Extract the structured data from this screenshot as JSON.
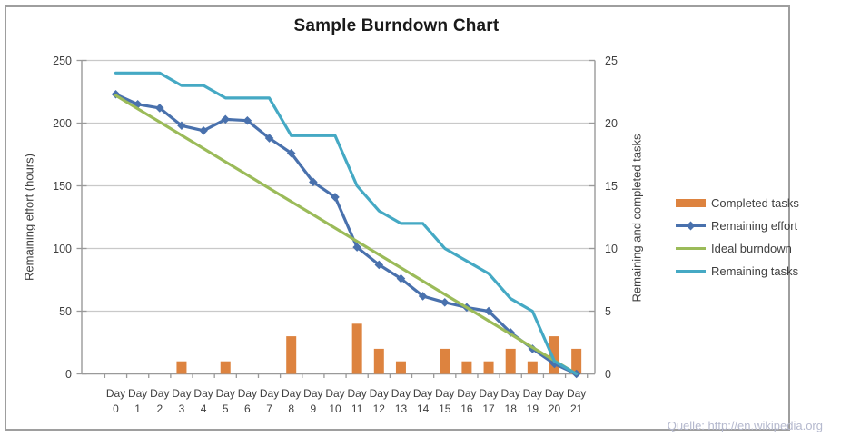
{
  "title": "Sample Burndown Chart",
  "source_note": "Quelle: http://en.wikipedia.org",
  "colors": {
    "gridline": "#c9c9c9",
    "axis_line": "#9a9a9a",
    "tick_text": "#3f3f3f",
    "title_text": "#1a1a1a",
    "source_text": "#b5b9ce",
    "frame_border": "#9e9e9e",
    "bar_orange": "#dd833f",
    "effort_blue": "#4971ad",
    "ideal_green": "#9bbb59",
    "tasks_teal": "#45a9c4"
  },
  "chart_data": {
    "type": "combo-bar-line",
    "title": "Sample Burndown Chart",
    "categories": [
      "Day 0",
      "Day 1",
      "Day 2",
      "Day 3",
      "Day 4",
      "Day 5",
      "Day 6",
      "Day 7",
      "Day 8",
      "Day 9",
      "Day 10",
      "Day 11",
      "Day 12",
      "Day 13",
      "Day 14",
      "Day 15",
      "Day 16",
      "Day 17",
      "Day 18",
      "Day 19",
      "Day 20",
      "Day 21"
    ],
    "left_axis": {
      "label": "Remaining effort (hours)",
      "ticks": [
        0,
        50,
        100,
        150,
        200,
        250
      ],
      "range": [
        0,
        250
      ]
    },
    "right_axis": {
      "label": "Remaining and completed tasks",
      "ticks": [
        0,
        5,
        10,
        15,
        20,
        25
      ],
      "range": [
        0,
        25
      ]
    },
    "grid": true,
    "legend_position": "right",
    "series": [
      {
        "name": "Completed tasks",
        "type": "bar",
        "axis": "right",
        "color": "#dd833f",
        "values": [
          0,
          0,
          0,
          1,
          0,
          1,
          0,
          0,
          3,
          0,
          0,
          4,
          2,
          1,
          0,
          2,
          1,
          1,
          2,
          1,
          3,
          2
        ]
      },
      {
        "name": "Remaining effort",
        "type": "line",
        "marker": "diamond",
        "axis": "left",
        "color": "#4971ad",
        "values": [
          223,
          215,
          212,
          198,
          194,
          203,
          202,
          188,
          176,
          153,
          141,
          101,
          87,
          76,
          62,
          57,
          53,
          50,
          33,
          20,
          8,
          0
        ]
      },
      {
        "name": "Ideal burndown",
        "type": "line",
        "marker": "none",
        "axis": "left",
        "color": "#9bbb59",
        "values": [
          222,
          211.4,
          200.9,
          190.3,
          179.7,
          169.1,
          158.6,
          148,
          137.4,
          126.9,
          116.3,
          105.7,
          95.1,
          84.6,
          74,
          63.4,
          52.9,
          42.3,
          31.7,
          21.1,
          10.6,
          0
        ]
      },
      {
        "name": "Remaining tasks",
        "type": "line",
        "marker": "none",
        "axis": "right",
        "color": "#45a9c4",
        "values": [
          24,
          24,
          24,
          23,
          23,
          22,
          22,
          22,
          19,
          19,
          19,
          15,
          13,
          12,
          12,
          10,
          9,
          8,
          6,
          5,
          1,
          0
        ]
      }
    ]
  }
}
